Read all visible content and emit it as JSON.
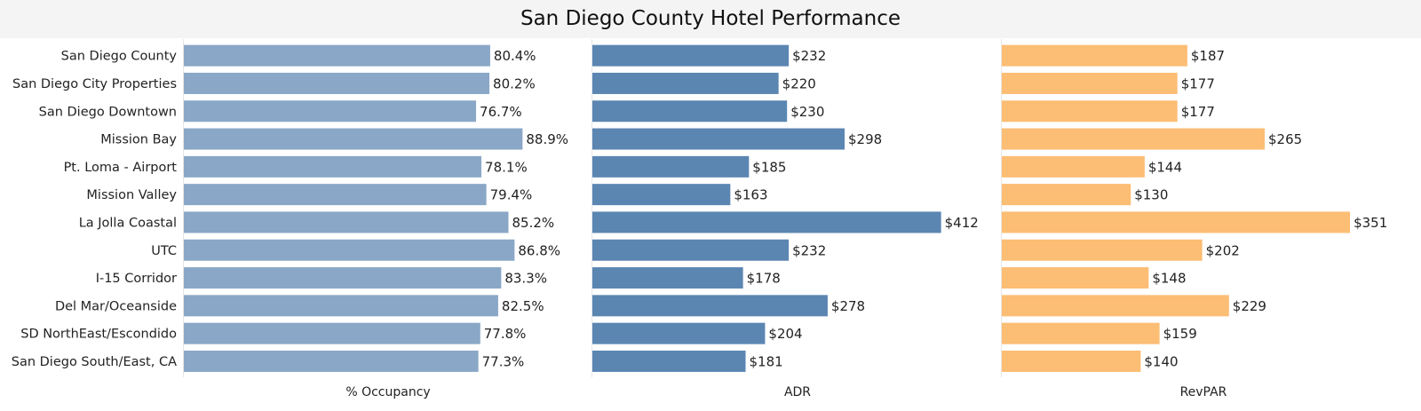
{
  "chart_data": {
    "type": "bar",
    "title": "San Diego County Hotel Performance",
    "categories": [
      "San Diego County",
      "San Diego City Properties",
      "San Diego Downtown",
      "Mission Bay",
      "Pt. Loma - Airport",
      "Mission Valley",
      "La Jolla Coastal",
      "UTC",
      "I-15 Corridor",
      "Del Mar/Oceanside",
      "SD NorthEast/Escondido",
      "San Diego South/East, CA"
    ],
    "series": [
      {
        "name": "% Occupancy",
        "color": "#8aa7c7",
        "values": [
          80.4,
          80.2,
          76.7,
          88.9,
          78.1,
          79.4,
          85.2,
          86.8,
          83.3,
          82.5,
          77.8,
          77.3
        ],
        "labels": [
          "80.4%",
          "80.2%",
          "76.7%",
          "88.9%",
          "78.1%",
          "79.4%",
          "85.2%",
          "86.8%",
          "83.3%",
          "82.5%",
          "77.8%",
          "77.3%"
        ]
      },
      {
        "name": "ADR",
        "color": "#5b86b2",
        "values": [
          232,
          220,
          230,
          298,
          185,
          163,
          412,
          232,
          178,
          278,
          204,
          181
        ],
        "labels": [
          "$232",
          "$220",
          "$230",
          "$298",
          "$185",
          "$163",
          "$412",
          "$232",
          "$178",
          "$278",
          "$204",
          "$181"
        ]
      },
      {
        "name": "RevPAR",
        "color": "#fcbd74",
        "values": [
          187,
          177,
          177,
          265,
          144,
          130,
          351,
          202,
          148,
          229,
          159,
          140
        ],
        "labels": [
          "$187",
          "$177",
          "$177",
          "$265",
          "$144",
          "$130",
          "$351",
          "$202",
          "$148",
          "$229",
          "$159",
          "$140"
        ]
      }
    ],
    "orientation": "horizontal",
    "grid": false
  }
}
